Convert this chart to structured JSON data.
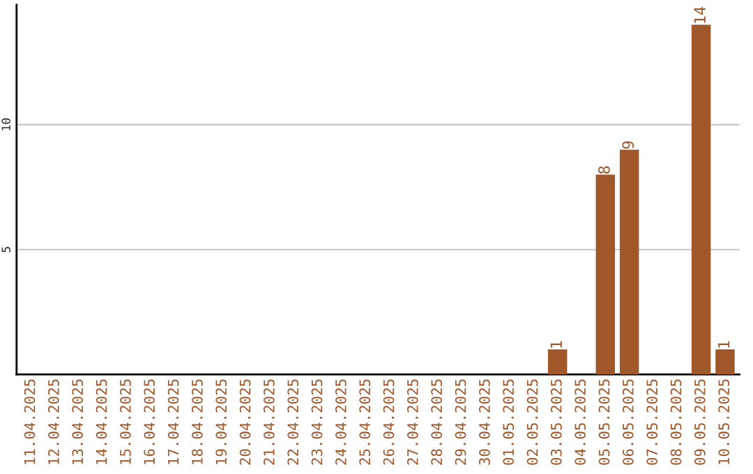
{
  "chart_data": {
    "type": "bar",
    "categories": [
      "11.04.2025",
      "12.04.2025",
      "13.04.2025",
      "14.04.2025",
      "15.04.2025",
      "16.04.2025",
      "17.04.2025",
      "18.04.2025",
      "19.04.2025",
      "20.04.2025",
      "21.04.2025",
      "22.04.2025",
      "23.04.2025",
      "24.04.2025",
      "25.04.2025",
      "26.04.2025",
      "27.04.2025",
      "28.04.2025",
      "29.04.2025",
      "30.04.2025",
      "01.05.2025",
      "02.05.2025",
      "03.05.2025",
      "04.05.2025",
      "05.05.2025",
      "06.05.2025",
      "07.05.2025",
      "08.05.2025",
      "09.05.2025",
      "10.05.2025"
    ],
    "values": [
      0,
      0,
      0,
      0,
      0,
      0,
      0,
      0,
      0,
      0,
      0,
      0,
      0,
      0,
      0,
      0,
      0,
      0,
      0,
      0,
      0,
      0,
      1,
      0,
      8,
      9,
      0,
      0,
      14,
      1
    ],
    "value_labels": [
      null,
      null,
      null,
      null,
      null,
      null,
      null,
      null,
      null,
      null,
      null,
      null,
      null,
      null,
      null,
      null,
      null,
      null,
      null,
      null,
      null,
      null,
      "1",
      null,
      "8",
      "9",
      null,
      null,
      "14",
      "1"
    ],
    "color": "#a0582a",
    "ylim": [
      0,
      14.8
    ],
    "yticks": [
      5,
      10
    ],
    "grid": "y"
  }
}
